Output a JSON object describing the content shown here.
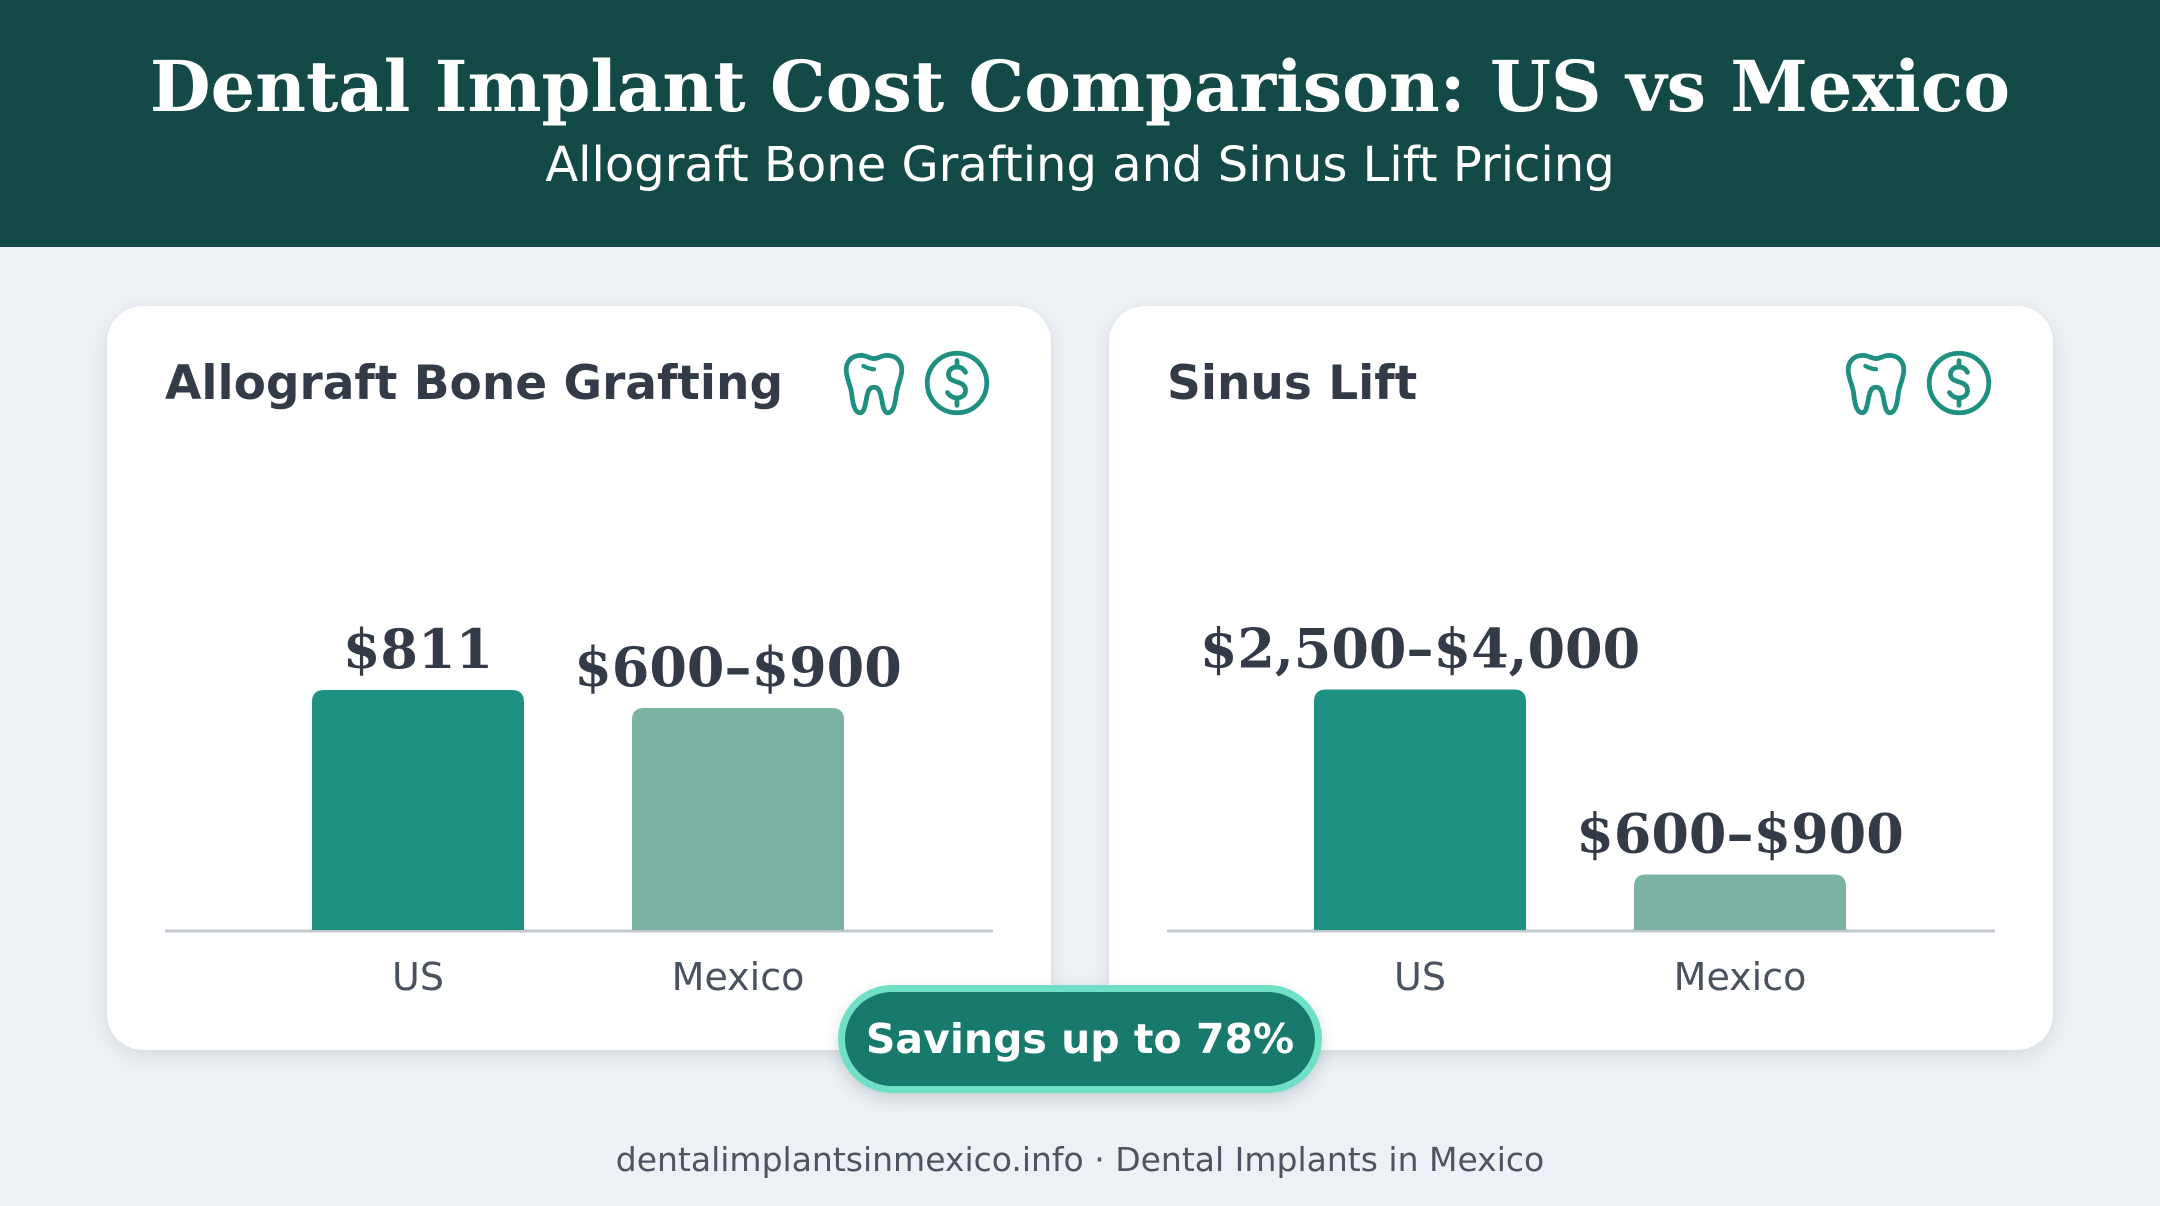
{
  "header": {
    "title": "Dental Implant Cost Comparison: US vs Mexico",
    "subtitle": "Allograft Bone Grafting and Sinus Lift Pricing"
  },
  "colors": {
    "header_bg": "#134a48",
    "us_bar": "#1f9183",
    "mexico_bar": "#7cb2a4",
    "accent": "#1f8f80",
    "badge_border": "#6fe0c6"
  },
  "icons": [
    "tooth-icon",
    "dollar-icon"
  ],
  "chart_data": [
    {
      "type": "bar",
      "title": "Allograft Bone Grafting",
      "categories": [
        "US",
        "Mexico"
      ],
      "values": [
        811,
        750
      ],
      "value_labels": [
        "$811",
        "$600–$900"
      ],
      "ylim": [
        0,
        1000
      ],
      "grid": false
    },
    {
      "type": "bar",
      "title": "Sinus Lift",
      "categories": [
        "US",
        "Mexico"
      ],
      "values": [
        3250,
        750
      ],
      "value_labels": [
        "$2,500–$4,000",
        "$600–$900"
      ],
      "ylim": [
        0,
        4000
      ],
      "grid": false
    }
  ],
  "badge": {
    "text": "Savings up to 78%"
  },
  "footer": {
    "text": "dentalimplantsinmexico.info · Dental Implants in Mexico"
  }
}
